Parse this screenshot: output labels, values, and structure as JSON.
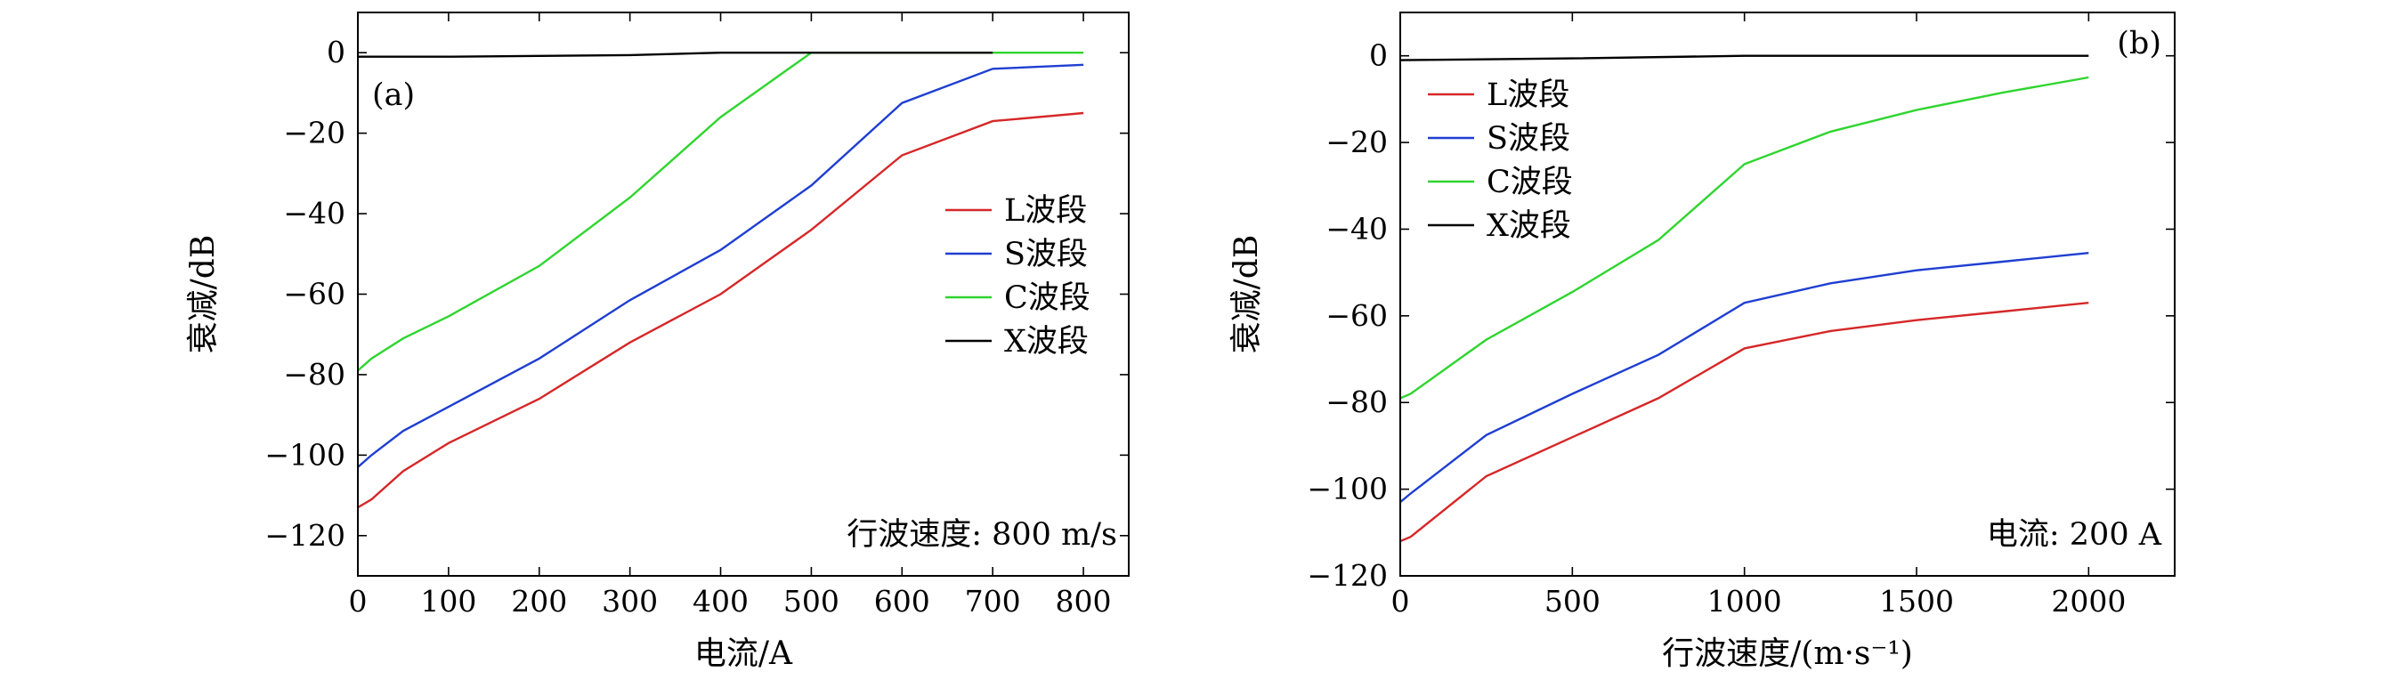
{
  "colors": {
    "L": "#d62728",
    "S": "#1f3fd1",
    "C": "#2fd52f",
    "X": "#000000"
  },
  "chart_data": [
    {
      "type": "line",
      "panel_label": "(a)",
      "xlabel": "电流/A",
      "ylabel": "衰减/dB",
      "xlim": [
        0,
        850
      ],
      "ylim": [
        -130,
        10
      ],
      "xticks": [
        0,
        100,
        200,
        300,
        400,
        500,
        600,
        700,
        800
      ],
      "xtick_labels": [
        "0",
        "100",
        "200",
        "300",
        "400",
        "500",
        "600",
        "700",
        "800"
      ],
      "yticks": [
        0,
        -20,
        -40,
        -60,
        -80,
        -100,
        -120
      ],
      "ytick_labels": [
        "0",
        "−20",
        "−40",
        "−60",
        "−80",
        "−100",
        "−120"
      ],
      "annotation": "行波速度: 800 m/s",
      "legend": [
        "L波段",
        "S波段",
        "C波段",
        "X波段"
      ],
      "legend_position": "center-right",
      "series": [
        {
          "name": "L波段",
          "color_key": "L",
          "x": [
            0,
            15,
            50,
            100,
            200,
            300,
            400,
            500,
            600,
            700,
            800
          ],
          "y": [
            -113,
            -111,
            -104,
            -97,
            -86,
            -72,
            -60,
            -44,
            -25.5,
            -17,
            -15
          ]
        },
        {
          "name": "S波段",
          "color_key": "S",
          "x": [
            0,
            15,
            50,
            100,
            200,
            300,
            400,
            500,
            600,
            700,
            800
          ],
          "y": [
            -103,
            -100,
            -94,
            -88,
            -76,
            -61.5,
            -49,
            -33,
            -12.5,
            -4,
            -3
          ]
        },
        {
          "name": "C波段",
          "color_key": "C",
          "x": [
            0,
            15,
            50,
            100,
            200,
            300,
            400,
            500,
            600,
            700,
            800
          ],
          "y": [
            -79,
            -76,
            -71,
            -65.5,
            -53,
            -36,
            -16,
            0,
            0,
            0,
            0
          ]
        },
        {
          "name": "X波段",
          "color_key": "X",
          "x": [
            0,
            100,
            200,
            300,
            400,
            500,
            600,
            700
          ],
          "y": [
            -1,
            -1,
            -0.8,
            -0.6,
            0,
            0,
            0,
            0
          ]
        }
      ]
    },
    {
      "type": "line",
      "panel_label": "(b)",
      "xlabel": "行波速度/(m·s⁻¹)",
      "ylabel": "衰减/dB",
      "xlim": [
        0,
        2250
      ],
      "ylim": [
        -120,
        10
      ],
      "xticks": [
        0,
        500,
        1000,
        1500,
        2000
      ],
      "xtick_labels": [
        "0",
        "500",
        "1000",
        "1500",
        "2000"
      ],
      "yticks": [
        0,
        -20,
        -40,
        -60,
        -80,
        -100,
        -120
      ],
      "ytick_labels": [
        "0",
        "−20",
        "−40",
        "−60",
        "−80",
        "−100",
        "−120"
      ],
      "annotation": "电流: 200 A",
      "legend": [
        "L波段",
        "S波段",
        "C波段",
        "X波段"
      ],
      "legend_position": "top-left",
      "series": [
        {
          "name": "L波段",
          "color_key": "L",
          "x": [
            0,
            30,
            250,
            500,
            750,
            1000,
            1250,
            1500,
            1750,
            2000
          ],
          "y": [
            -112,
            -111,
            -97,
            -88,
            -79,
            -67.5,
            -63.5,
            -61,
            -59,
            -57
          ]
        },
        {
          "name": "S波段",
          "color_key": "S",
          "x": [
            0,
            30,
            250,
            500,
            750,
            1000,
            1250,
            1500,
            1750,
            2000
          ],
          "y": [
            -103,
            -101,
            -87.5,
            -78,
            -69,
            -57,
            -52.5,
            -49.5,
            -47.5,
            -45.5
          ]
        },
        {
          "name": "C波段",
          "color_key": "C",
          "x": [
            0,
            30,
            250,
            500,
            750,
            1000,
            1250,
            1500,
            1750,
            2000
          ],
          "y": [
            -79,
            -78,
            -65.5,
            -54.5,
            -42.5,
            -25,
            -17.5,
            -12.5,
            -8.5,
            -5
          ]
        },
        {
          "name": "X波段",
          "color_key": "X",
          "x": [
            0,
            500,
            1000,
            1500,
            2000
          ],
          "y": [
            -1,
            -0.6,
            0,
            0,
            0
          ]
        }
      ]
    }
  ]
}
